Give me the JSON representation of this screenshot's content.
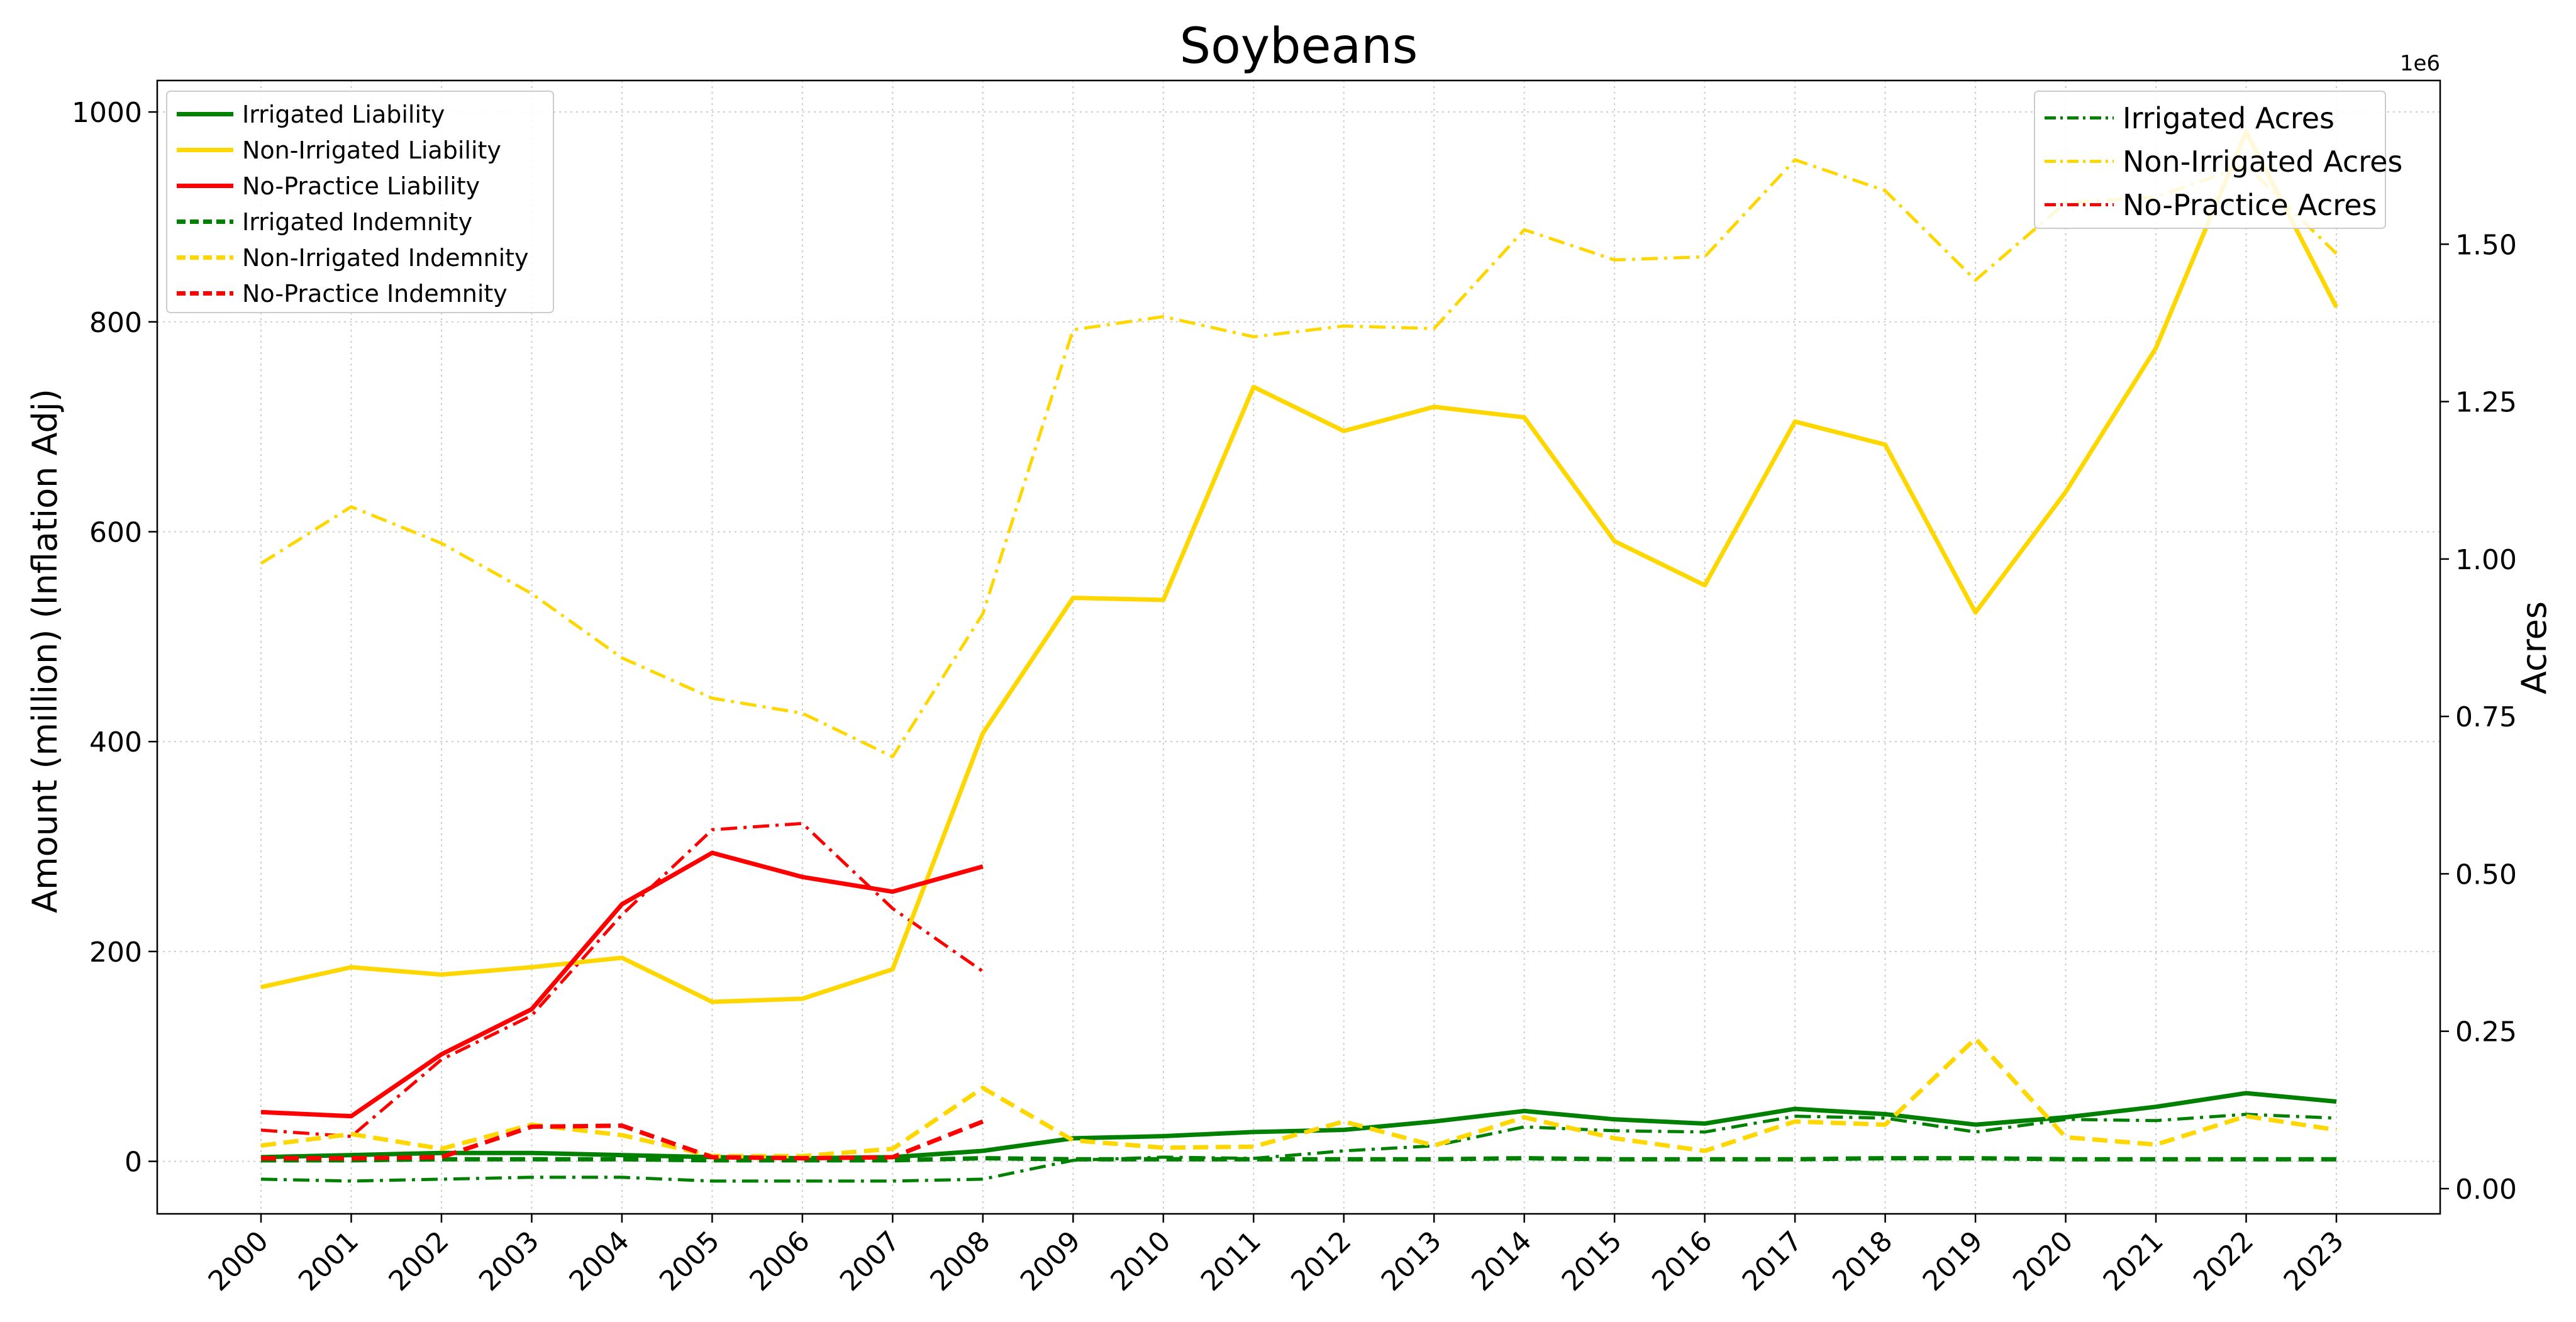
{
  "chart_data": {
    "type": "line",
    "title": "Soybeans",
    "ylabel_left": "Amount (million) (Inflation Adj)",
    "ylabel_right": "Acres",
    "right_axis_offset_label": "1e6",
    "x": [
      2000,
      2001,
      2002,
      2003,
      2004,
      2005,
      2006,
      2007,
      2008,
      2009,
      2010,
      2011,
      2012,
      2013,
      2014,
      2015,
      2016,
      2017,
      2018,
      2019,
      2020,
      2021,
      2022,
      2023
    ],
    "x_tick_labels": [
      "2000",
      "2001",
      "2002",
      "2003",
      "2004",
      "2005",
      "2006",
      "2007",
      "2008",
      "2009",
      "2010",
      "2011",
      "2012",
      "2013",
      "2014",
      "2015",
      "2016",
      "2017",
      "2018",
      "2019",
      "2020",
      "2021",
      "2022",
      "2023"
    ],
    "ylim_left": [
      -50,
      1030
    ],
    "yticks_left": [
      0,
      200,
      400,
      600,
      800,
      1000
    ],
    "yticks_left_labels": [
      "0",
      "200",
      "400",
      "600",
      "800",
      "1000"
    ],
    "ylim_right": [
      -0.04,
      1.76
    ],
    "yticks_right": [
      0.0,
      0.25,
      0.5,
      0.75,
      1.0,
      1.25,
      1.5
    ],
    "yticks_right_labels": [
      "0.00",
      "0.25",
      "0.50",
      "0.75",
      "1.00",
      "1.25",
      "1.50"
    ],
    "grid": true,
    "legend_left_placement": "top-left",
    "legend_right_placement": "top-right",
    "colors": {
      "irrigated": "#008000",
      "non_irrigated": "#FFD700",
      "no_practice": "#FF0000"
    },
    "series_left": [
      {
        "name": "Irrigated Liability",
        "color": "#008000",
        "style": "solid",
        "values": [
          4,
          6,
          8,
          8,
          6,
          4,
          3,
          4,
          10,
          22,
          24,
          28,
          30,
          38,
          48,
          40,
          36,
          50,
          45,
          35,
          42,
          52,
          65,
          57
        ]
      },
      {
        "name": "Non-Irrigated Liability",
        "color": "#FFD700",
        "style": "solid",
        "values": [
          166,
          185,
          178,
          185,
          194,
          152,
          155,
          183,
          408,
          537,
          535,
          738,
          696,
          719,
          709,
          591,
          549,
          705,
          683,
          523,
          638,
          775,
          981,
          814
        ]
      },
      {
        "name": "No-Practice Liability",
        "color": "#FF0000",
        "style": "solid",
        "values": [
          47,
          43,
          102,
          145,
          245,
          294,
          271,
          257,
          281,
          null,
          null,
          null,
          null,
          null,
          null,
          null,
          null,
          null,
          null,
          null,
          null,
          null,
          null,
          null
        ]
      },
      {
        "name": "Irrigated Indemnity",
        "color": "#008000",
        "style": "dashed",
        "values": [
          1,
          1,
          2,
          2,
          2,
          1,
          1,
          1,
          3,
          2,
          2,
          2,
          2,
          2,
          3,
          2,
          2,
          2,
          3,
          3,
          2,
          2,
          2,
          2
        ]
      },
      {
        "name": "Non-Irrigated Indemnity",
        "color": "#FFD700",
        "style": "dashed",
        "values": [
          15,
          26,
          12,
          35,
          25,
          5,
          5,
          12,
          70,
          20,
          13,
          14,
          38,
          15,
          42,
          22,
          10,
          38,
          35,
          117,
          23,
          16,
          43,
          30
        ]
      },
      {
        "name": "No-Practice Indemnity",
        "color": "#FF0000",
        "style": "dashed",
        "values": [
          3,
          3,
          4,
          33,
          34,
          4,
          3,
          4,
          38,
          null,
          null,
          null,
          null,
          null,
          null,
          null,
          null,
          null,
          null,
          null,
          null,
          null,
          null,
          null
        ]
      }
    ],
    "series_right": [
      {
        "name": "Irrigated Acres",
        "color": "#008000",
        "style": "dashdot",
        "values": [
          0.015,
          0.012,
          0.015,
          0.018,
          0.018,
          0.012,
          0.012,
          0.012,
          0.015,
          0.045,
          0.05,
          0.048,
          0.06,
          0.068,
          0.098,
          0.092,
          0.09,
          0.115,
          0.112,
          0.09,
          0.11,
          0.108,
          0.118,
          0.112
        ]
      },
      {
        "name": "Non-Irrigated Acres",
        "color": "#FFD700",
        "style": "dashdot",
        "values": [
          0.993,
          1.083,
          1.025,
          0.945,
          0.843,
          0.779,
          0.755,
          0.686,
          0.913,
          1.364,
          1.385,
          1.353,
          1.37,
          1.366,
          1.523,
          1.475,
          1.48,
          1.634,
          1.585,
          1.443,
          1.566,
          1.575,
          1.625,
          1.485
        ]
      },
      {
        "name": "No-Practice Acres",
        "color": "#FF0000",
        "style": "dashdot",
        "values": [
          0.093,
          0.083,
          0.205,
          0.275,
          0.435,
          0.57,
          0.58,
          0.445,
          0.345,
          null,
          null,
          null,
          null,
          null,
          null,
          null,
          null,
          null,
          null,
          null,
          null,
          null,
          null,
          null
        ]
      }
    ]
  }
}
